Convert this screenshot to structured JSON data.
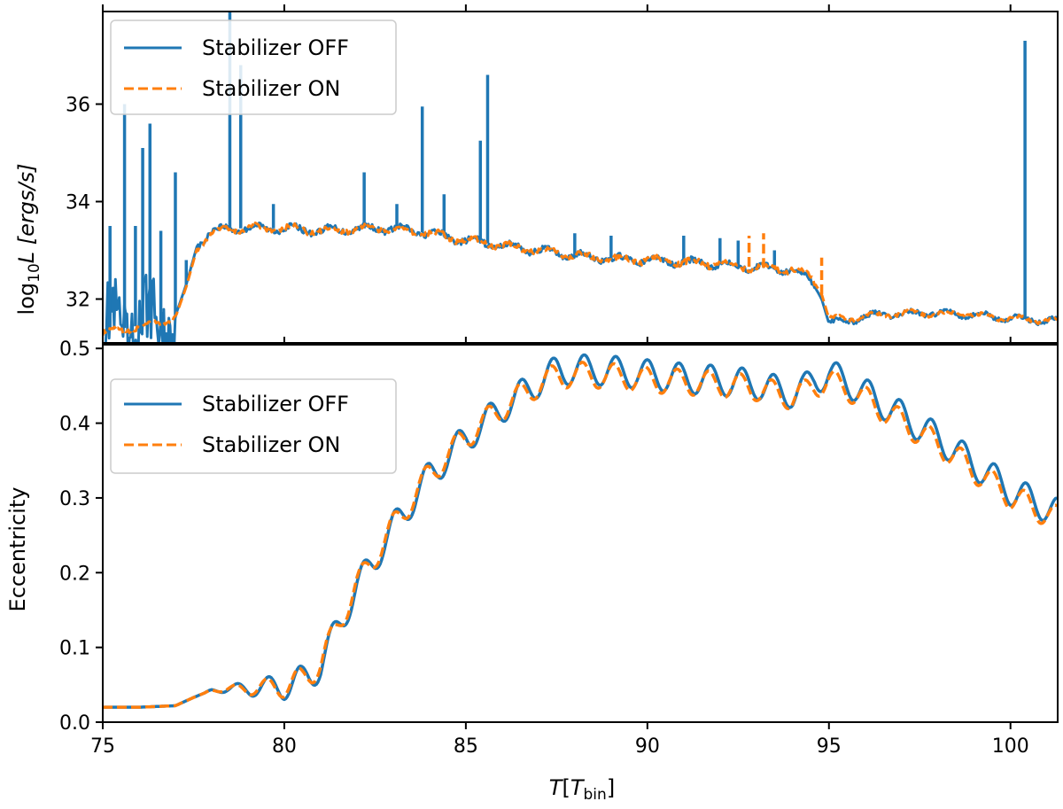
{
  "chart_data": [
    {
      "type": "line",
      "panel": "top",
      "title": "",
      "xlabel": "",
      "ylabel_base": "log",
      "ylabel_sub": "10",
      "ylabel_rest": "L [ergs/s]",
      "xlim": [
        75,
        101.3
      ],
      "ylim": [
        31.1,
        37.9
      ],
      "yticks": [
        32,
        34,
        36
      ],
      "ytick_labels": [
        "32",
        "34",
        "36"
      ],
      "xticks": [
        75,
        80,
        85,
        90,
        95,
        100
      ],
      "legend": {
        "loc": "top-left",
        "entries": [
          "Stabilizer OFF",
          "Stabilizer ON"
        ]
      },
      "series": [
        {
          "name": "Stabilizer OFF",
          "color": "#1f77b4",
          "style": "solid",
          "x": [
            75.0,
            75.5,
            76.0,
            76.5,
            77.0,
            77.3,
            77.6,
            78.0,
            78.5,
            79.0,
            80.0,
            81.0,
            82.0,
            83.0,
            84.0,
            85.0,
            86.0,
            87.0,
            88.0,
            89.0,
            90.0,
            91.0,
            92.0,
            93.0,
            94.0,
            94.5,
            94.8,
            95.0,
            95.5,
            96.0,
            97.0,
            98.0,
            99.0,
            100.0,
            101.3
          ],
          "values": [
            31.35,
            31.4,
            31.45,
            31.55,
            31.65,
            32.3,
            33.1,
            33.4,
            33.45,
            33.45,
            33.45,
            33.4,
            33.45,
            33.45,
            33.35,
            33.2,
            33.1,
            33.0,
            32.9,
            32.82,
            32.8,
            32.75,
            32.72,
            32.65,
            32.6,
            32.4,
            32.0,
            31.5,
            31.55,
            31.65,
            31.7,
            31.72,
            31.68,
            31.6,
            31.55
          ],
          "noise_band": [
            [
              75.0,
              77.0,
              0.9
            ],
            [
              77.6,
              94.6,
              0.15
            ],
            [
              95.0,
              101.3,
              0.12
            ]
          ],
          "spikes": [
            [
              75.2,
              33.5
            ],
            [
              75.6,
              36.0
            ],
            [
              75.9,
              33.5
            ],
            [
              76.1,
              35.1
            ],
            [
              76.3,
              35.6
            ],
            [
              76.6,
              33.4
            ],
            [
              77.0,
              34.6
            ],
            [
              77.3,
              32.8
            ],
            [
              78.5,
              37.9
            ],
            [
              78.8,
              36.8
            ],
            [
              79.7,
              33.95
            ],
            [
              82.2,
              34.6
            ],
            [
              83.1,
              33.95
            ],
            [
              83.8,
              35.95
            ],
            [
              84.4,
              34.15
            ],
            [
              85.4,
              35.25
            ],
            [
              85.6,
              36.6
            ],
            [
              88.0,
              33.35
            ],
            [
              89.0,
              33.3
            ],
            [
              91.0,
              33.3
            ],
            [
              92.0,
              33.25
            ],
            [
              92.5,
              33.2
            ],
            [
              93.5,
              33.0
            ],
            [
              100.4,
              37.3
            ]
          ]
        },
        {
          "name": "Stabilizer ON",
          "color": "#ff7f0e",
          "style": "dashed",
          "x": [
            75.0,
            75.5,
            76.0,
            76.5,
            77.0,
            77.3,
            77.6,
            78.0,
            78.5,
            79.0,
            80.0,
            81.0,
            82.0,
            83.0,
            84.0,
            85.0,
            86.0,
            87.0,
            88.0,
            89.0,
            90.0,
            91.0,
            92.0,
            93.0,
            94.0,
            94.5,
            94.8,
            95.0,
            95.5,
            96.0,
            97.0,
            98.0,
            99.0,
            100.0,
            101.3
          ],
          "values": [
            31.3,
            31.35,
            31.42,
            31.5,
            31.62,
            32.25,
            33.05,
            33.38,
            33.45,
            33.45,
            33.45,
            33.4,
            33.45,
            33.45,
            33.35,
            33.2,
            33.1,
            33.0,
            32.9,
            32.82,
            32.8,
            32.75,
            32.72,
            32.65,
            32.6,
            32.45,
            32.1,
            31.6,
            31.6,
            31.65,
            31.7,
            31.7,
            31.68,
            31.6,
            31.55
          ],
          "noise_band": [
            [
              75.0,
              77.0,
              0.12
            ],
            [
              77.6,
              94.6,
              0.14
            ],
            [
              95.0,
              101.3,
              0.1
            ]
          ],
          "spikes": [
            [
              92.8,
              33.3
            ],
            [
              93.2,
              33.35
            ],
            [
              94.8,
              32.85
            ]
          ]
        }
      ]
    },
    {
      "type": "line",
      "panel": "bottom",
      "title": "",
      "xlabel_main": "T",
      "xlabel_bracket_open": "[",
      "xlabel_T": "T",
      "xlabel_sub": "bin",
      "xlabel_bracket_close": "]",
      "ylabel": "Eccentricity",
      "xlim": [
        75,
        101.3
      ],
      "ylim": [
        0.0,
        0.505
      ],
      "xticks": [
        75,
        80,
        85,
        90,
        95,
        100
      ],
      "xtick_labels": [
        "75",
        "80",
        "85",
        "90",
        "95",
        "100"
      ],
      "yticks": [
        0.0,
        0.1,
        0.2,
        0.3,
        0.4,
        0.5
      ],
      "ytick_labels": [
        "0.0",
        "0.1",
        "0.2",
        "0.3",
        "0.4",
        "0.5"
      ],
      "legend": {
        "loc": "top-left",
        "entries": [
          "Stabilizer OFF",
          "Stabilizer ON"
        ]
      },
      "series": [
        {
          "name": "Stabilizer OFF",
          "color": "#1f77b4",
          "style": "solid",
          "x": [
            75.0,
            76.0,
            77.0,
            77.5,
            78.0,
            79.0,
            80.0,
            80.5,
            81.0,
            81.5,
            82.0,
            83.0,
            84.0,
            85.0,
            86.0,
            87.0,
            87.5,
            88.0,
            89.0,
            90.0,
            91.0,
            92.0,
            93.0,
            93.5,
            94.0,
            94.3,
            94.6,
            95.0,
            95.5,
            96.0,
            97.0,
            98.0,
            99.0,
            100.0,
            101.3
          ],
          "values": [
            0.02,
            0.02,
            0.022,
            0.033,
            0.043,
            0.045,
            0.048,
            0.056,
            0.075,
            0.13,
            0.18,
            0.26,
            0.33,
            0.38,
            0.42,
            0.455,
            0.47,
            0.472,
            0.47,
            0.465,
            0.46,
            0.457,
            0.452,
            0.445,
            0.44,
            0.445,
            0.46,
            0.465,
            0.455,
            0.44,
            0.41,
            0.38,
            0.345,
            0.31,
            0.28
          ],
          "ripple": 0.02
        },
        {
          "name": "Stabilizer ON",
          "color": "#ff7f0e",
          "style": "dashed",
          "x": [
            75.0,
            76.0,
            77.0,
            77.5,
            78.0,
            79.0,
            80.0,
            80.5,
            81.0,
            81.5,
            82.0,
            83.0,
            84.0,
            85.0,
            86.0,
            87.0,
            87.5,
            88.0,
            89.0,
            90.0,
            91.0,
            92.0,
            93.0,
            93.5,
            94.0,
            94.3,
            94.6,
            95.0,
            95.5,
            96.0,
            97.0,
            98.0,
            99.0,
            100.0,
            101.3
          ],
          "values": [
            0.02,
            0.02,
            0.022,
            0.033,
            0.043,
            0.045,
            0.048,
            0.057,
            0.078,
            0.133,
            0.183,
            0.262,
            0.332,
            0.382,
            0.42,
            0.452,
            0.463,
            0.465,
            0.463,
            0.458,
            0.455,
            0.452,
            0.447,
            0.44,
            0.435,
            0.44,
            0.452,
            0.455,
            0.447,
            0.432,
            0.402,
            0.372,
            0.337,
            0.302,
            0.272
          ],
          "ripple": 0.017
        }
      ]
    }
  ]
}
